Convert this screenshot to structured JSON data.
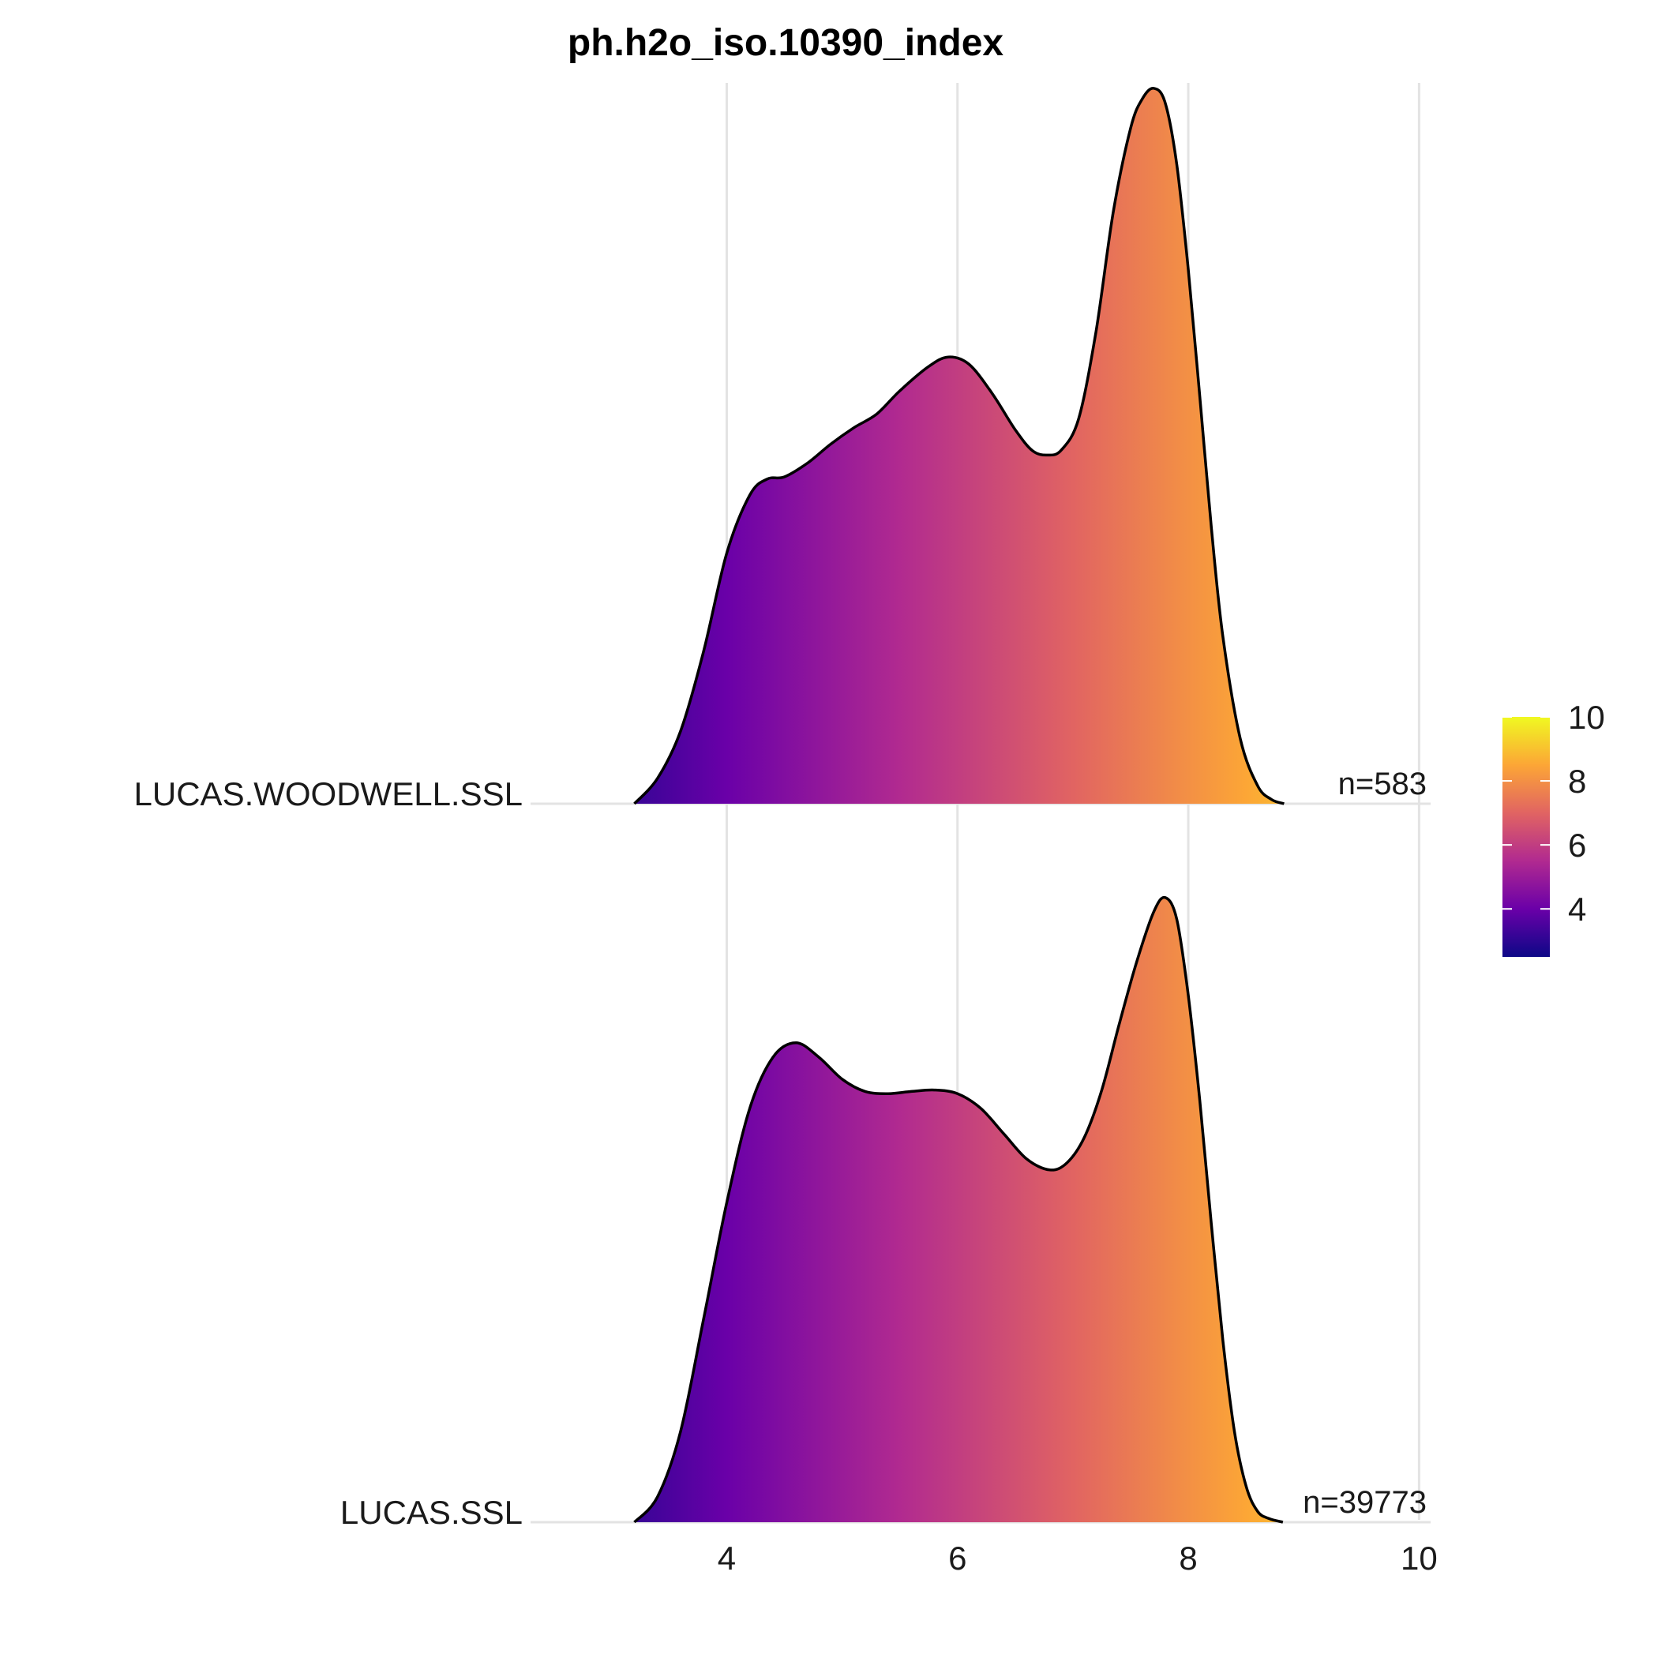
{
  "chart_data": {
    "type": "ridgeline-density",
    "title": "ph.h2o_iso.10390_index",
    "xlabel": "",
    "ylabel": "",
    "xlim": [
      2.3,
      10.1
    ],
    "x_ticks": [
      4,
      6,
      8,
      10
    ],
    "grid": true,
    "fill": "gradient-by-x (plasma)",
    "series": [
      {
        "name": "LUCAS.WOODWELL.SSL",
        "n_label": "n=583",
        "x": [
          3.2,
          3.4,
          3.6,
          3.8,
          4.0,
          4.2,
          4.35,
          4.5,
          4.7,
          4.9,
          5.1,
          5.3,
          5.5,
          5.75,
          5.92,
          6.1,
          6.3,
          6.5,
          6.65,
          6.78,
          6.9,
          7.05,
          7.2,
          7.35,
          7.5,
          7.6,
          7.7,
          7.8,
          7.9,
          8.0,
          8.1,
          8.2,
          8.3,
          8.45,
          8.6,
          8.72,
          8.83
        ],
        "density": [
          0.0,
          0.07,
          0.2,
          0.42,
          0.69,
          0.85,
          0.894,
          0.9,
          0.938,
          0.99,
          1.035,
          1.073,
          1.137,
          1.204,
          1.23,
          1.21,
          1.13,
          1.03,
          0.972,
          0.96,
          0.974,
          1.06,
          1.3,
          1.63,
          1.86,
          1.94,
          1.97,
          1.93,
          1.76,
          1.47,
          1.12,
          0.76,
          0.46,
          0.18,
          0.05,
          0.012,
          0.0
        ]
      },
      {
        "name": "LUCAS.SSL",
        "n_label": "n=39773",
        "x": [
          3.2,
          3.4,
          3.6,
          3.8,
          4.0,
          4.2,
          4.4,
          4.6,
          4.8,
          5.0,
          5.2,
          5.4,
          5.6,
          5.8,
          6.0,
          6.2,
          6.4,
          6.6,
          6.8,
          6.95,
          7.1,
          7.25,
          7.4,
          7.55,
          7.7,
          7.8,
          7.9,
          8.0,
          8.1,
          8.2,
          8.3,
          8.4,
          8.5,
          8.6,
          8.7,
          8.82
        ],
        "density": [
          0.0,
          0.07,
          0.25,
          0.56,
          0.88,
          1.14,
          1.28,
          1.32,
          1.28,
          1.22,
          1.186,
          1.18,
          1.186,
          1.19,
          1.18,
          1.14,
          1.07,
          1.0,
          0.97,
          0.99,
          1.06,
          1.19,
          1.37,
          1.54,
          1.68,
          1.72,
          1.66,
          1.45,
          1.16,
          0.82,
          0.5,
          0.25,
          0.1,
          0.03,
          0.01,
          0.0
        ]
      }
    ],
    "legend": {
      "position": "right",
      "min": 2.5,
      "max": 10,
      "ticks": [
        4,
        6,
        8,
        10
      ],
      "colors": [
        "#0d0887",
        "#6a00a8",
        "#b12a90",
        "#e16462",
        "#fca636",
        "#f0f921"
      ]
    },
    "outline_color": "#000000",
    "gridline_color": "#e3e3e3"
  }
}
